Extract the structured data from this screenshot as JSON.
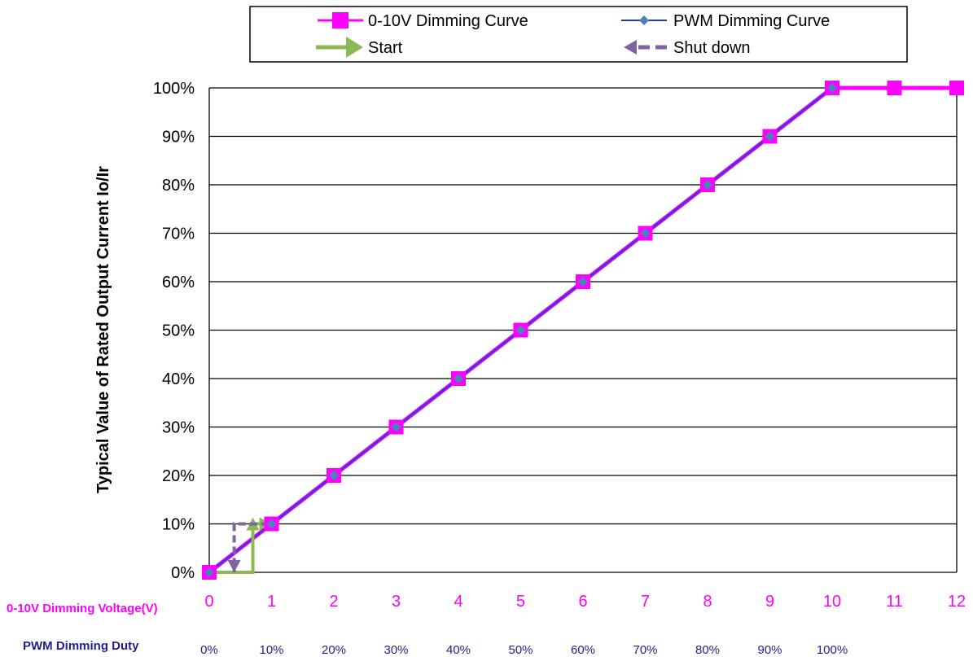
{
  "chart_data": {
    "type": "line",
    "ylabel": "Typical Value of Rated Output Current Io/Ir",
    "xlabel": "0-10V Dimming Voltage(V)",
    "xlabel2": "PWM Dimming Duty",
    "x": [
      0,
      1,
      2,
      3,
      4,
      5,
      6,
      7,
      8,
      9,
      10,
      11,
      12
    ],
    "xlim": [
      0,
      12
    ],
    "ylim": [
      0,
      100
    ],
    "x_ticks": [
      "0",
      "1",
      "2",
      "3",
      "4",
      "5",
      "6",
      "7",
      "8",
      "9",
      "10",
      "11",
      "12"
    ],
    "duty_ticks": [
      "0%",
      "10%",
      "20%",
      "30%",
      "40%",
      "50%",
      "60%",
      "70%",
      "80%",
      "90%",
      "100%"
    ],
    "y_ticks": [
      "0%",
      "10%",
      "20%",
      "30%",
      "40%",
      "50%",
      "60%",
      "70%",
      "80%",
      "90%",
      "100%"
    ],
    "series": [
      {
        "name": "0-10V Dimming Curve",
        "color": "#ff00ff",
        "marker": "square",
        "x": [
          0,
          1,
          2,
          3,
          4,
          5,
          6,
          7,
          8,
          9,
          10,
          11,
          12
        ],
        "values": [
          0,
          10,
          20,
          30,
          40,
          50,
          60,
          70,
          80,
          90,
          100,
          100,
          100
        ]
      },
      {
        "name": "PWM Dimming Curve",
        "color": "#1f3fa0",
        "marker": "diamond",
        "x": [
          0,
          1,
          2,
          3,
          4,
          5,
          6,
          7,
          8,
          9,
          10
        ],
        "values": [
          0,
          10,
          20,
          30,
          40,
          50,
          60,
          70,
          80,
          90,
          100
        ]
      }
    ],
    "annotations": [
      {
        "name": "Start",
        "color": "#8db954",
        "style": "solid-arrow",
        "path_x": [
          0,
          0.7,
          0.7,
          1.0
        ],
        "path_y": [
          0,
          0,
          10,
          10
        ]
      },
      {
        "name": "Shut down",
        "color": "#8064a2",
        "style": "dashed-arrow",
        "path_x": [
          0.95,
          0.4,
          0.4
        ],
        "path_y": [
          10,
          10,
          0
        ]
      }
    ],
    "legend": {
      "placement": "top-center",
      "entries": [
        "0-10V Dimming Curve",
        "PWM Dimming Curve",
        "Start",
        "Shut down"
      ]
    },
    "grid": "horizontal",
    "colors": {
      "voltage_axis": "#ff00ff",
      "duty_axis": "#1f1f8f",
      "grid": "#000000"
    }
  }
}
